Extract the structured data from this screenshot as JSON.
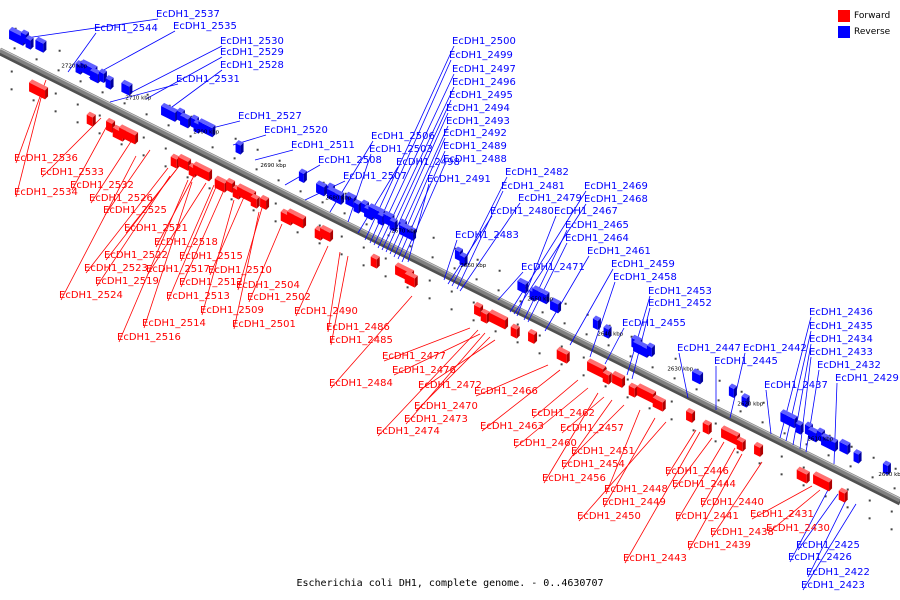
{
  "caption": "Escherichia coli DH1, complete genome. - 0..4630707",
  "legend": [
    {
      "label": "Forward",
      "color": "#ff0000"
    },
    {
      "label": "Reverse",
      "color": "#0000ff"
    }
  ],
  "colors": {
    "forward": "#ff0000",
    "reverse": "#0000ff",
    "axis": "#808080"
  },
  "scale_ticks": [
    "2720 kbp",
    "2710 kbp",
    "2700 kbp",
    "2690 kbp",
    "2680 kbp",
    "2670 kbp",
    "2660 kbp",
    "2650 kbp",
    "2640 kbp",
    "2630 kbp",
    "2620 kbp",
    "2610 kbp",
    "2600 kbp"
  ],
  "reverse_genes": [
    "EcDH1_2537",
    "EcDH1_2544",
    "EcDH1_2535",
    "EcDH1_2530",
    "EcDH1_2529",
    "EcDH1_2528",
    "EcDH1_2531",
    "EcDH1_2527",
    "EcDH1_2520",
    "EcDH1_2511",
    "EcDH1_2508",
    "EcDH1_2507",
    "EcDH1_2506",
    "EcDH1_2503",
    "EcDH1_2498",
    "EcDH1_2500",
    "EcDH1_2499",
    "EcDH1_2497",
    "EcDH1_2496",
    "EcDH1_2495",
    "EcDH1_2494",
    "EcDH1_2493",
    "EcDH1_2492",
    "EcDH1_2489",
    "EcDH1_2488",
    "EcDH1_2491",
    "EcDH1_2482",
    "EcDH1_2481",
    "EcDH1_2479",
    "EcDH1_2480",
    "EcDH1_2483",
    "EcDH1_2469",
    "EcDH1_2468",
    "EcDH1_2467",
    "EcDH1_2465",
    "EcDH1_2464",
    "EcDH1_2471",
    "EcDH1_2461",
    "EcDH1_2459",
    "EcDH1_2458",
    "EcDH1_2453",
    "EcDH1_2452",
    "EcDH1_2455",
    "EcDH1_2447",
    "EcDH1_2445",
    "EcDH1_2442",
    "EcDH1_2437",
    "EcDH1_2436",
    "EcDH1_2435",
    "EcDH1_2434",
    "EcDH1_2433",
    "EcDH1_2432",
    "EcDH1_2429",
    "EcDH1_2426",
    "EcDH1_2425",
    "EcDH1_2422",
    "EcDH1_2423"
  ],
  "forward_genes": [
    "EcDH1_2536",
    "EcDH1_2533",
    "EcDH1_2532",
    "EcDH1_2534",
    "EcDH1_2526",
    "EcDH1_2525",
    "EcDH1_2521",
    "EcDH1_2518",
    "EcDH1_2522",
    "EcDH1_2515",
    "EcDH1_2523",
    "EcDH1_2517",
    "EcDH1_2510",
    "EcDH1_2519",
    "EcDH1_2512",
    "EcDH1_2504",
    "EcDH1_2524",
    "EcDH1_2513",
    "EcDH1_2502",
    "EcDH1_2509",
    "EcDH1_2490",
    "EcDH1_2514",
    "EcDH1_2501",
    "EcDH1_2486",
    "EcDH1_2516",
    "EcDH1_2485",
    "EcDH1_2477",
    "EcDH1_2476",
    "EcDH1_2484",
    "EcDH1_2472",
    "EcDH1_2466",
    "EcDH1_2470",
    "EcDH1_2473",
    "EcDH1_2462",
    "EcDH1_2474",
    "EcDH1_2463",
    "EcDH1_2457",
    "EcDH1_2460",
    "EcDH1_2451",
    "EcDH1_2454",
    "EcDH1_2456",
    "EcDH1_2446",
    "EcDH1_2448",
    "EcDH1_2444",
    "EcDH1_2449",
    "EcDH1_2440",
    "EcDH1_2450",
    "EcDH1_2441",
    "EcDH1_2438",
    "EcDH1_2439",
    "EcDH1_2443",
    "EcDH1_2431",
    "EcDH1_2430"
  ]
}
